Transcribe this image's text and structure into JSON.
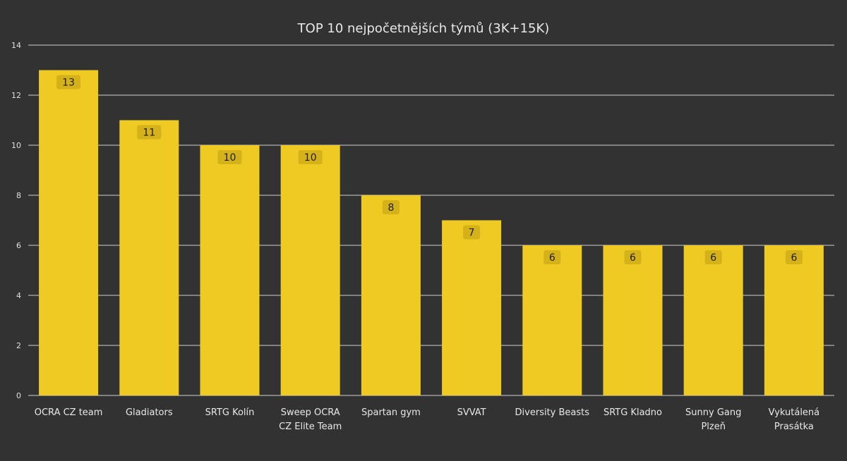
{
  "chart_data": {
    "type": "bar",
    "title": "TOP 10 nejpočetnějších týmů (3K+15K)",
    "xlabel": "",
    "ylabel": "",
    "categories": [
      [
        "OCRA CZ team"
      ],
      [
        "Gladiators"
      ],
      [
        "SRTG Kolín"
      ],
      [
        "Sweep OCRA",
        "CZ Elite Team"
      ],
      [
        "Spartan gym"
      ],
      [
        "SVVAT"
      ],
      [
        "Diversity Beasts"
      ],
      [
        "SRTG Kladno"
      ],
      [
        "Sunny Gang",
        "Plzeň"
      ],
      [
        "Vykutálená",
        "Prasátka"
      ]
    ],
    "values": [
      13,
      11,
      10,
      10,
      8,
      7,
      6,
      6,
      6,
      6
    ],
    "ylim": [
      0,
      14
    ],
    "yticks": [
      0,
      2,
      4,
      6,
      8,
      10,
      12,
      14
    ],
    "grid": true,
    "colors": {
      "background": "#323232",
      "bar": "#EFCA22",
      "label_box": "#D5B21A",
      "grid": "#D0D0D0",
      "text": "#E8E8E8"
    }
  }
}
